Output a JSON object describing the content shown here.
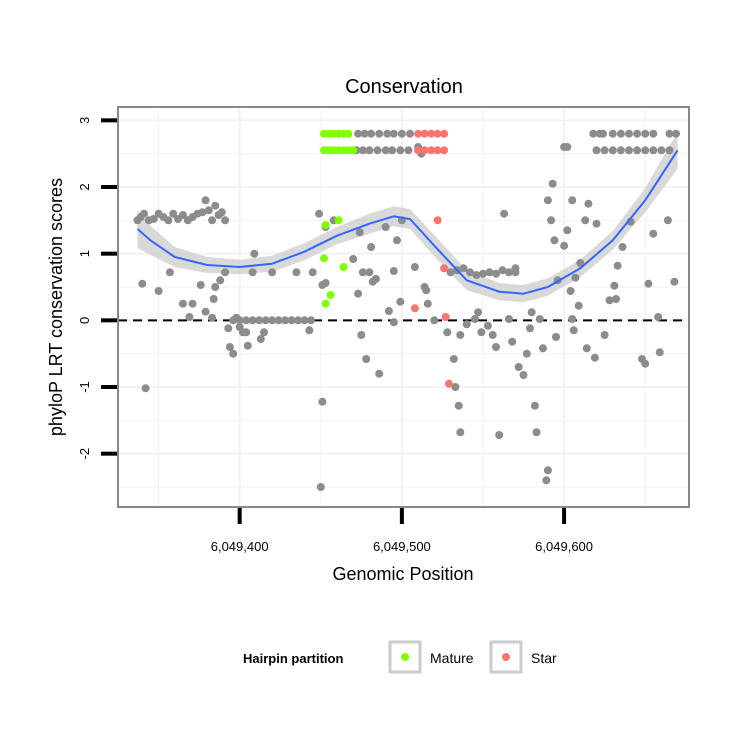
{
  "chart_data": {
    "type": "scatter",
    "title": "Conservation",
    "xlabel": "Genomic Position",
    "ylabel": "phyloP LRT conservation scores",
    "xlim": [
      6049325,
      6049677
    ],
    "ylim": [
      -2.8,
      3.2
    ],
    "x_ticks": [
      6049400,
      6049500,
      6049600
    ],
    "x_tick_labels": [
      "6,049,400",
      "6,049,500",
      "6,049,600"
    ],
    "y_ticks": [
      -2,
      -1,
      0,
      1,
      2,
      3
    ],
    "y_tick_labels": [
      "-2",
      "-1",
      "0",
      "1",
      "2",
      "3"
    ],
    "grid": true,
    "reference_line": {
      "y": 0,
      "style": "dashed"
    },
    "legend": {
      "title": "Hairpin partition",
      "position": "bottom",
      "entries": [
        {
          "label": "Mature",
          "color": "#7fff00"
        },
        {
          "label": "Star",
          "color": "#f8766d"
        }
      ]
    },
    "colors": {
      "other": "#8c8c8c",
      "Mature": "#7fff00",
      "Star": "#f8766d",
      "smooth": "#3366ff",
      "band": "#cccccc"
    },
    "series": [
      {
        "name": "Other",
        "points": [
          [
            6049340,
            0.55
          ],
          [
            6049342,
            -1.02
          ],
          [
            6049350,
            0.44
          ],
          [
            6049357,
            0.72
          ],
          [
            6049365,
            0.25
          ],
          [
            6049369,
            0.05
          ],
          [
            6049371,
            0.25
          ],
          [
            6049376,
            0.53
          ],
          [
            6049379,
            0.13
          ],
          [
            6049383,
            0.04
          ],
          [
            6049384,
            0.32
          ],
          [
            6049385,
            0.5
          ],
          [
            6049388,
            0.6
          ],
          [
            6049391,
            0.72
          ],
          [
            6049393,
            -0.12
          ],
          [
            6049394,
            -0.4
          ],
          [
            6049396,
            -0.5
          ],
          [
            6049398,
            0.04
          ],
          [
            6049400,
            -0.1
          ],
          [
            6049402,
            -0.18
          ],
          [
            6049404,
            -0.18
          ],
          [
            6049405,
            -0.38
          ],
          [
            6049408,
            0.72
          ],
          [
            6049409,
            1.0
          ],
          [
            6049413,
            -0.28
          ],
          [
            6049415,
            -0.18
          ],
          [
            6049420,
            0.72
          ],
          [
            6049435,
            0.72
          ],
          [
            6049443,
            -0.15
          ],
          [
            6049445,
            0.72
          ],
          [
            6049449,
            1.6
          ],
          [
            6049451,
            -1.22
          ],
          [
            6049450,
            -2.5
          ],
          [
            6049451,
            0.53
          ],
          [
            6049453,
            0.56
          ],
          [
            6049453,
            1.4
          ],
          [
            6049458,
            1.5
          ],
          [
            6049470,
            0.92
          ],
          [
            6049473,
            0.4
          ],
          [
            6049474,
            1.32
          ],
          [
            6049475,
            -0.22
          ],
          [
            6049476,
            0.72
          ],
          [
            6049478,
            -0.58
          ],
          [
            6049480,
            0.72
          ],
          [
            6049481,
            1.1
          ],
          [
            6049482,
            0.58
          ],
          [
            6049484,
            0.62
          ],
          [
            6049486,
            -0.8
          ],
          [
            6049490,
            1.4
          ],
          [
            6049492,
            0.14
          ],
          [
            6049495,
            -0.03
          ],
          [
            6049495,
            0.74
          ],
          [
            6049497,
            1.2
          ],
          [
            6049499,
            0.28
          ],
          [
            6049500,
            1.5
          ],
          [
            6049508,
            0.8
          ],
          [
            6049510,
            2.6
          ],
          [
            6049512,
            2.5
          ],
          [
            6049514,
            0.5
          ],
          [
            6049515,
            0.45
          ],
          [
            6049516,
            0.25
          ],
          [
            6049520,
            0.0
          ],
          [
            6049528,
            -0.18
          ],
          [
            6049532,
            -0.58
          ],
          [
            6049533,
            -1.0
          ],
          [
            6049535,
            -1.28
          ],
          [
            6049536,
            -1.68
          ],
          [
            6049536,
            -0.22
          ],
          [
            6049540,
            -0.06
          ],
          [
            6049545,
            0.02
          ],
          [
            6049547,
            0.12
          ],
          [
            6049549,
            -0.18
          ],
          [
            6049553,
            -0.08
          ],
          [
            6049556,
            -0.22
          ],
          [
            6049558,
            -0.4
          ],
          [
            6049560,
            -1.72
          ],
          [
            6049563,
            1.6
          ],
          [
            6049566,
            0.02
          ],
          [
            6049568,
            -0.32
          ],
          [
            6049570,
            0.78
          ],
          [
            6049572,
            -0.7
          ],
          [
            6049575,
            -0.82
          ],
          [
            6049577,
            -0.5
          ],
          [
            6049579,
            -0.12
          ],
          [
            6049580,
            0.12
          ],
          [
            6049582,
            -1.28
          ],
          [
            6049583,
            -1.68
          ],
          [
            6049585,
            0.02
          ],
          [
            6049587,
            -0.42
          ],
          [
            6049589,
            -2.4
          ],
          [
            6049590,
            -2.25
          ],
          [
            6049592,
            1.5
          ],
          [
            6049594,
            1.2
          ],
          [
            6049595,
            -0.25
          ],
          [
            6049596,
            0.6
          ],
          [
            6049600,
            1.12
          ],
          [
            6049602,
            1.35
          ],
          [
            6049604,
            0.44
          ],
          [
            6049605,
            0.02
          ],
          [
            6049606,
            -0.15
          ],
          [
            6049607,
            0.64
          ],
          [
            6049609,
            0.22
          ],
          [
            6049610,
            0.86
          ],
          [
            6049613,
            1.5
          ],
          [
            6049614,
            -0.42
          ],
          [
            6049615,
            1.75
          ],
          [
            6049619,
            -0.56
          ],
          [
            6049620,
            1.45
          ],
          [
            6049625,
            -0.22
          ],
          [
            6049628,
            0.3
          ],
          [
            6049631,
            0.52
          ],
          [
            6049632,
            0.32
          ],
          [
            6049633,
            0.82
          ],
          [
            6049636,
            1.1
          ],
          [
            6049641,
            1.48
          ],
          [
            6049648,
            -0.58
          ],
          [
            6049650,
            -0.65
          ],
          [
            6049652,
            0.55
          ],
          [
            6049655,
            1.3
          ],
          [
            6049658,
            0.05
          ],
          [
            6049659,
            -0.48
          ],
          [
            6049664,
            1.5
          ],
          [
            6049668,
            0.58
          ],
          [
            6049337,
            1.5
          ],
          [
            6049339,
            1.55
          ],
          [
            6049341,
            1.6
          ],
          [
            6049344,
            1.5
          ],
          [
            6049347,
            1.52
          ],
          [
            6049350,
            1.6
          ],
          [
            6049353,
            1.55
          ],
          [
            6049356,
            1.5
          ],
          [
            6049359,
            1.6
          ],
          [
            6049362,
            1.52
          ],
          [
            6049365,
            1.58
          ],
          [
            6049368,
            1.5
          ],
          [
            6049371,
            1.55
          ],
          [
            6049374,
            1.6
          ],
          [
            6049377,
            1.62
          ],
          [
            6049379,
            1.8
          ],
          [
            6049381,
            1.65
          ],
          [
            6049383,
            1.5
          ],
          [
            6049385,
            1.72
          ],
          [
            6049387,
            1.58
          ],
          [
            6049389,
            1.62
          ],
          [
            6049391,
            1.5
          ],
          [
            6049396,
            0.0
          ],
          [
            6049400,
            0.0
          ],
          [
            6049404,
            0.0
          ],
          [
            6049408,
            0.0
          ],
          [
            6049412,
            0.0
          ],
          [
            6049416,
            0.0
          ],
          [
            6049420,
            0.0
          ],
          [
            6049424,
            0.0
          ],
          [
            6049428,
            0.0
          ],
          [
            6049432,
            0.0
          ],
          [
            6049436,
            0.0
          ],
          [
            6049440,
            0.0
          ],
          [
            6049444,
            0.0
          ],
          [
            6049530,
            0.72
          ],
          [
            6049534,
            0.75
          ],
          [
            6049538,
            0.78
          ],
          [
            6049542,
            0.72
          ],
          [
            6049546,
            0.68
          ],
          [
            6049550,
            0.7
          ],
          [
            6049554,
            0.72
          ],
          [
            6049558,
            0.7
          ],
          [
            6049562,
            0.75
          ],
          [
            6049566,
            0.72
          ],
          [
            6049570,
            0.72
          ],
          [
            6049590,
            1.8
          ],
          [
            6049593,
            2.05
          ],
          [
            6049600,
            2.6
          ],
          [
            6049602,
            2.6
          ],
          [
            6049605,
            1.8
          ],
          [
            6049618,
            2.8
          ],
          [
            6049622,
            2.8
          ],
          [
            6049624,
            2.8
          ],
          [
            6049630,
            2.8
          ],
          [
            6049635,
            2.8
          ],
          [
            6049640,
            2.8
          ],
          [
            6049645,
            2.8
          ],
          [
            6049650,
            2.8
          ],
          [
            6049655,
            2.8
          ],
          [
            6049665,
            2.8
          ],
          [
            6049669,
            2.8
          ],
          [
            6049620,
            2.55
          ],
          [
            6049625,
            2.55
          ],
          [
            6049630,
            2.55
          ],
          [
            6049635,
            2.55
          ],
          [
            6049640,
            2.55
          ],
          [
            6049645,
            2.55
          ],
          [
            6049650,
            2.55
          ],
          [
            6049655,
            2.55
          ],
          [
            6049660,
            2.55
          ],
          [
            6049665,
            2.55
          ],
          [
            6049473,
            2.8
          ],
          [
            6049477,
            2.8
          ],
          [
            6049481,
            2.8
          ],
          [
            6049486,
            2.8
          ],
          [
            6049491,
            2.8
          ],
          [
            6049495,
            2.8
          ],
          [
            6049500,
            2.8
          ],
          [
            6049505,
            2.8
          ],
          [
            6049472,
            2.55
          ],
          [
            6049476,
            2.55
          ],
          [
            6049480,
            2.55
          ],
          [
            6049485,
            2.55
          ],
          [
            6049490,
            2.55
          ],
          [
            6049494,
            2.55
          ],
          [
            6049499,
            2.55
          ],
          [
            6049504,
            2.55
          ]
        ]
      },
      {
        "name": "Mature",
        "points": [
          [
            6049452,
            0.93
          ],
          [
            6049453,
            1.43
          ],
          [
            6049453,
            0.25
          ],
          [
            6049456,
            0.38
          ],
          [
            6049461,
            1.5
          ],
          [
            6049464,
            0.8
          ],
          [
            6049452,
            2.8
          ],
          [
            6049455,
            2.8
          ],
          [
            6049458,
            2.8
          ],
          [
            6049461,
            2.8
          ],
          [
            6049464,
            2.8
          ],
          [
            6049467,
            2.8
          ],
          [
            6049452,
            2.55
          ],
          [
            6049455,
            2.55
          ],
          [
            6049458,
            2.55
          ],
          [
            6049461,
            2.55
          ],
          [
            6049464,
            2.55
          ],
          [
            6049467,
            2.55
          ],
          [
            6049470,
            2.55
          ]
        ]
      },
      {
        "name": "Star",
        "points": [
          [
            6049508,
            0.18
          ],
          [
            6049522,
            1.5
          ],
          [
            6049526,
            0.78
          ],
          [
            6049527,
            0.05
          ],
          [
            6049529,
            -0.95
          ],
          [
            6049510,
            2.8
          ],
          [
            6049514,
            2.8
          ],
          [
            6049518,
            2.8
          ],
          [
            6049522,
            2.8
          ],
          [
            6049526,
            2.8
          ],
          [
            6049510,
            2.55
          ],
          [
            6049514,
            2.55
          ],
          [
            6049518,
            2.55
          ],
          [
            6049522,
            2.55
          ],
          [
            6049526,
            2.55
          ]
        ]
      }
    ],
    "smooth": {
      "x": [
        6049337,
        6049345,
        6049360,
        6049380,
        6049400,
        6049420,
        6049440,
        6049460,
        6049480,
        6049495,
        6049505,
        6049520,
        6049540,
        6049560,
        6049575,
        6049590,
        6049610,
        6049630,
        6049650,
        6049670
      ],
      "y": [
        1.37,
        1.2,
        0.95,
        0.83,
        0.8,
        0.85,
        1.03,
        1.27,
        1.45,
        1.56,
        1.52,
        1.12,
        0.6,
        0.43,
        0.4,
        0.5,
        0.78,
        1.2,
        1.8,
        2.55
      ],
      "se": [
        0.28,
        0.22,
        0.15,
        0.12,
        0.11,
        0.12,
        0.13,
        0.13,
        0.15,
        0.15,
        0.15,
        0.16,
        0.15,
        0.13,
        0.13,
        0.13,
        0.13,
        0.14,
        0.18,
        0.28
      ]
    }
  }
}
